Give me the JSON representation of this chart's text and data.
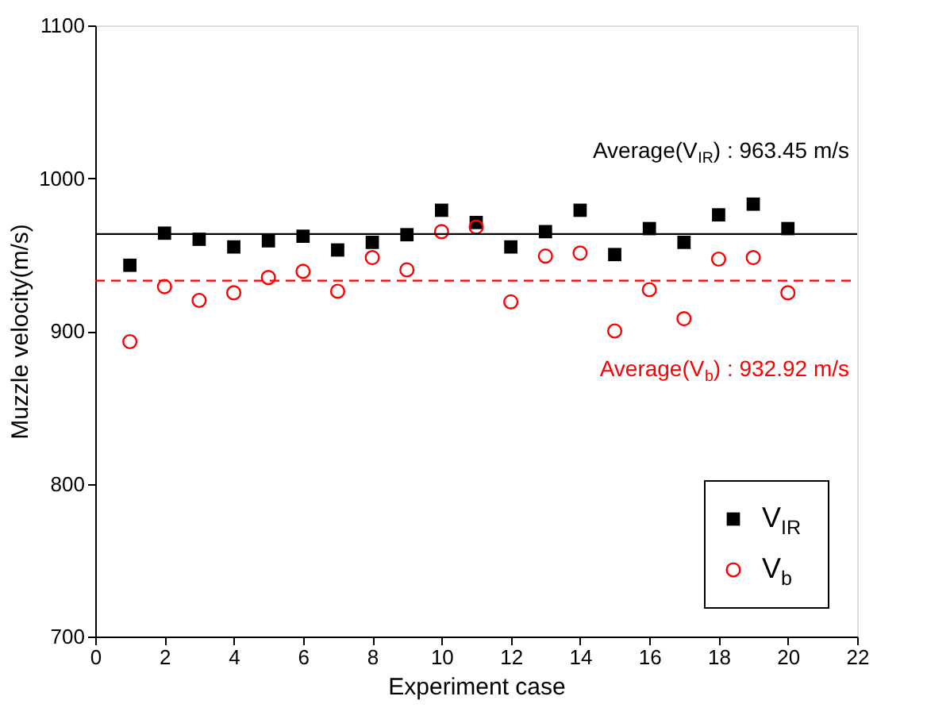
{
  "chart_data": {
    "type": "scatter",
    "xlabel": "Experiment case",
    "ylabel": "Muzzle velocity(m/s)",
    "x": [
      1,
      2,
      3,
      4,
      5,
      6,
      7,
      8,
      9,
      10,
      11,
      12,
      13,
      14,
      15,
      16,
      17,
      18,
      19,
      20
    ],
    "series": [
      {
        "name": "V$_{IR}$",
        "color": "#000000",
        "marker": "square",
        "values": [
          943,
          964,
          960,
          955,
          959,
          962,
          953,
          958,
          963,
          979,
          971,
          955,
          965,
          979,
          950,
          967,
          958,
          976,
          983,
          967
        ]
      },
      {
        "name": "V$_{b}$",
        "color": "#ff0000",
        "marker": "circle",
        "values": [
          893,
          929,
          920,
          925,
          935,
          939,
          926,
          948,
          940,
          965,
          968,
          919,
          949,
          951,
          900,
          927,
          908,
          947,
          948,
          925
        ]
      }
    ],
    "xlim": [
      0,
      22
    ],
    "xticks": [
      0,
      2,
      4,
      6,
      8,
      10,
      12,
      14,
      16,
      18,
      20,
      22
    ],
    "ylim": [
      700,
      1100
    ],
    "yticks": [
      700,
      800,
      900,
      1000,
      1100
    ],
    "ref_lines": [
      {
        "axis": "y",
        "value": 963.45,
        "label": "Average(V$_{IR}$) : 963.45 m/s",
        "color": "#000000",
        "line_style": "solid"
      },
      {
        "axis": "y",
        "value": 932.92,
        "label": "Average(V$_{b}$) : 932.92 m/s",
        "color": "#ff0000",
        "line_style": "dashed"
      }
    ],
    "grid": false,
    "legend": "bottom right"
  }
}
